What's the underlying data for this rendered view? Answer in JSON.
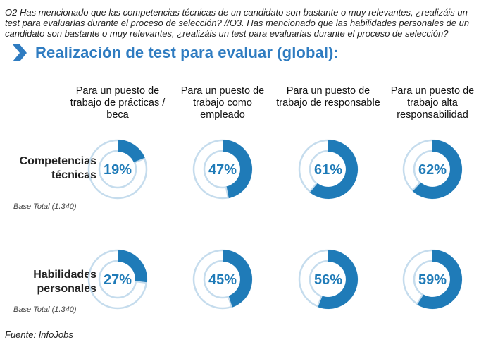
{
  "question": "O2 Has mencionado que las competencias técnicas de un candidato son bastante o muy relevantes, ¿realizáis un test para evaluarlas durante el proceso de selección?  //O3. Has mencionado que las habilidades personales de un candidato son bastante o muy relevantes, ¿realizáis un test para evaluarlas durante el proceso de selección?",
  "title": "Realización de test para evaluar (global):",
  "source": "Fuente: InfoJobs",
  "colors": {
    "accent": "#1f7bb8",
    "title": "#2f7cc1",
    "ring_light": "#c5dced"
  },
  "chart_data": {
    "type": "pie",
    "subtype": "donut-grid",
    "title": "Realización de test para evaluar (global):",
    "categories": [
      "Para un puesto de trabajo de prácticas / beca",
      "Para un puesto de trabajo como empleado",
      "Para un puesto de trabajo de responsable",
      "Para un puesto de trabajo alta responsabilidad"
    ],
    "series": [
      {
        "name": "Competencias técnicas",
        "base": "Base Total (1.340)",
        "values": [
          19,
          47,
          61,
          62
        ],
        "labels": [
          "19%",
          "47%",
          "61%",
          "62%"
        ]
      },
      {
        "name": "Habilidades personales",
        "base": "Base Total (1.340)",
        "values": [
          27,
          45,
          56,
          59
        ],
        "labels": [
          "27%",
          "45%",
          "56%",
          "59%"
        ]
      }
    ],
    "unit": "%"
  }
}
